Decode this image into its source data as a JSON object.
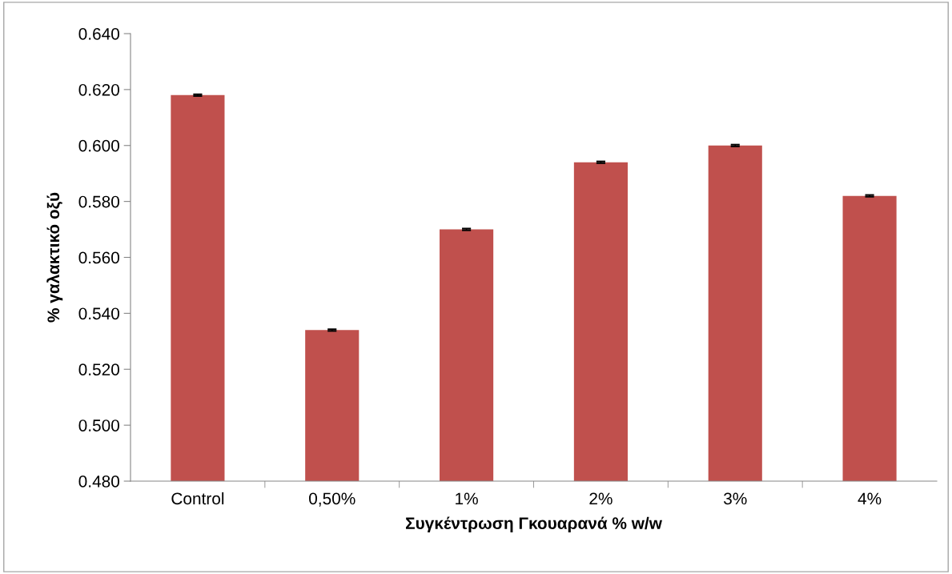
{
  "chart_data": {
    "type": "bar",
    "xlabel": "Συγκέντρωση Γκουαρανά % w/w",
    "ylabel": "% γαλακτικό οξύ",
    "categories": [
      "Control",
      "0,50%",
      "1%",
      "2%",
      "3%",
      "4%"
    ],
    "values": [
      0.618,
      0.534,
      0.57,
      0.594,
      0.6,
      0.582
    ],
    "errors": [
      0.0003,
      0.0003,
      0.0003,
      0.0003,
      0.0003,
      0.0003
    ],
    "color": "#c0504d",
    "ylim": [
      0.48,
      0.64
    ],
    "yticks": [
      {
        "value": 0.48,
        "label": "0.480"
      },
      {
        "value": 0.5,
        "label": "0.500"
      },
      {
        "value": 0.52,
        "label": "0.520"
      },
      {
        "value": 0.54,
        "label": "0.540"
      },
      {
        "value": 0.56,
        "label": "0.560"
      },
      {
        "value": 0.58,
        "label": "0.580"
      },
      {
        "value": 0.6,
        "label": "0.600"
      },
      {
        "value": 0.62,
        "label": "0.620"
      },
      {
        "value": 0.64,
        "label": "0.640"
      }
    ],
    "grid": false,
    "legend": false
  }
}
